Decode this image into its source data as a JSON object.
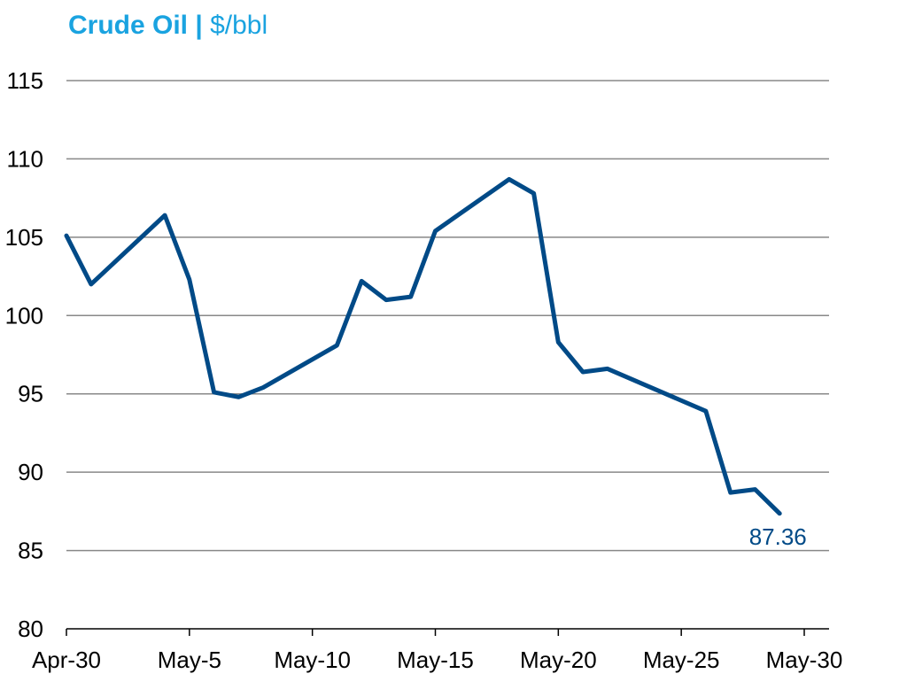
{
  "colors": {
    "title": "#1aa3e0",
    "line": "#004a87",
    "grid": "#888888",
    "axis": "#000000"
  },
  "chart_data": {
    "type": "line",
    "title": "Crude Oil",
    "title_separator": " | ",
    "unit": "$/bbl",
    "grid": true,
    "ylim": [
      80,
      115
    ],
    "y_ticks": [
      80,
      85,
      90,
      95,
      100,
      105,
      110,
      115
    ],
    "xlim": [
      "2022-04-30",
      "2022-05-30"
    ],
    "x_ticks": [
      {
        "date": "2022-04-30",
        "label": "Apr-30"
      },
      {
        "date": "2022-05-05",
        "label": "May-5"
      },
      {
        "date": "2022-05-10",
        "label": "May-10"
      },
      {
        "date": "2022-05-15",
        "label": "May-15"
      },
      {
        "date": "2022-05-20",
        "label": "May-20"
      },
      {
        "date": "2022-05-25",
        "label": "May-25"
      },
      {
        "date": "2022-05-30",
        "label": "May-30"
      }
    ],
    "series": [
      {
        "points": [
          {
            "x": "2022-04-30",
            "y": 105.1
          },
          {
            "x": "2022-05-01",
            "y": 102.0
          },
          {
            "x": "2022-05-04",
            "y": 106.4
          },
          {
            "x": "2022-05-05",
            "y": 102.3
          },
          {
            "x": "2022-05-06",
            "y": 95.1
          },
          {
            "x": "2022-05-07",
            "y": 94.8
          },
          {
            "x": "2022-05-08",
            "y": 95.4
          },
          {
            "x": "2022-05-11",
            "y": 98.1
          },
          {
            "x": "2022-05-12",
            "y": 102.2
          },
          {
            "x": "2022-05-13",
            "y": 101.0
          },
          {
            "x": "2022-05-14",
            "y": 101.2
          },
          {
            "x": "2022-05-15",
            "y": 105.4
          },
          {
            "x": "2022-05-18",
            "y": 108.7
          },
          {
            "x": "2022-05-19",
            "y": 107.8
          },
          {
            "x": "2022-05-20",
            "y": 98.3
          },
          {
            "x": "2022-05-21",
            "y": 96.4
          },
          {
            "x": "2022-05-22",
            "y": 96.6
          },
          {
            "x": "2022-05-26",
            "y": 93.9
          },
          {
            "x": "2022-05-27",
            "y": 88.7
          },
          {
            "x": "2022-05-28",
            "y": 88.9
          },
          {
            "x": "2022-05-29",
            "y": 87.36
          }
        ]
      }
    ],
    "annotations": [
      {
        "x": "2022-05-29",
        "y": 87.36,
        "text": "87.36"
      }
    ]
  }
}
